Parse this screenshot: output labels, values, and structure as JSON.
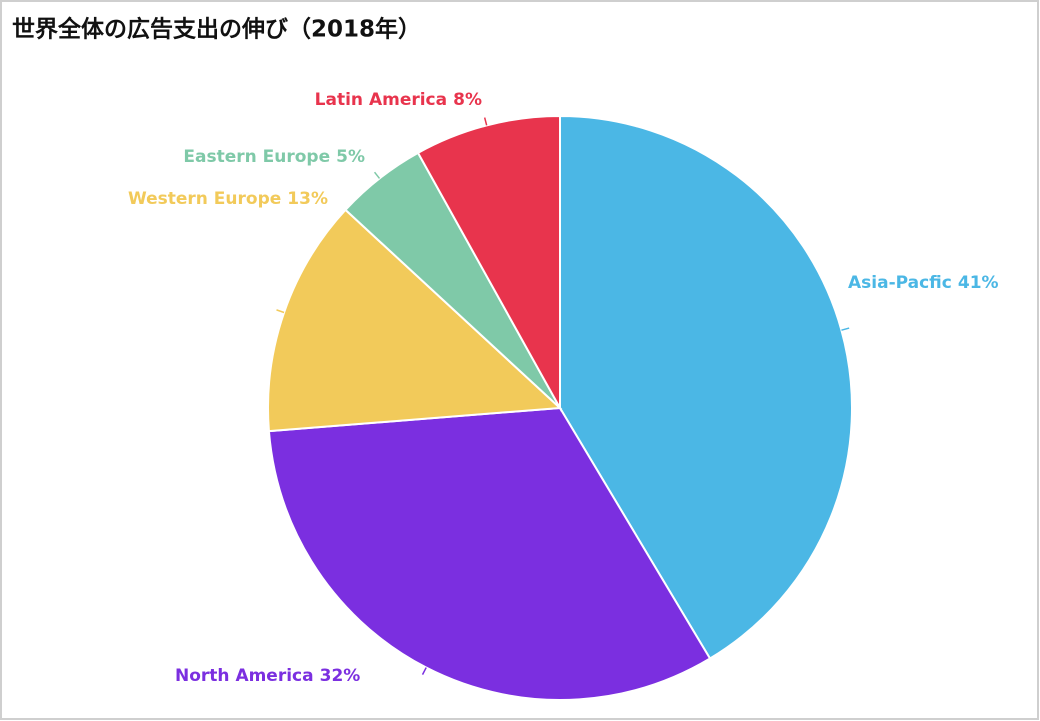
{
  "chart_data": {
    "type": "pie",
    "title": "世界全体の広告支出の伸び（2018年）",
    "categories": [
      "Asia-Pacfic",
      "North America",
      "Western Europe",
      "Eastern Europe",
      "Latin America"
    ],
    "values": [
      41,
      32,
      13,
      5,
      8
    ],
    "value_labels": [
      "41%",
      "32%",
      "13%",
      "5%",
      "8%"
    ],
    "colors": [
      "#4bb7e5",
      "#7b2fe0",
      "#f2ca5a",
      "#7fc9a8",
      "#e8344d"
    ]
  }
}
